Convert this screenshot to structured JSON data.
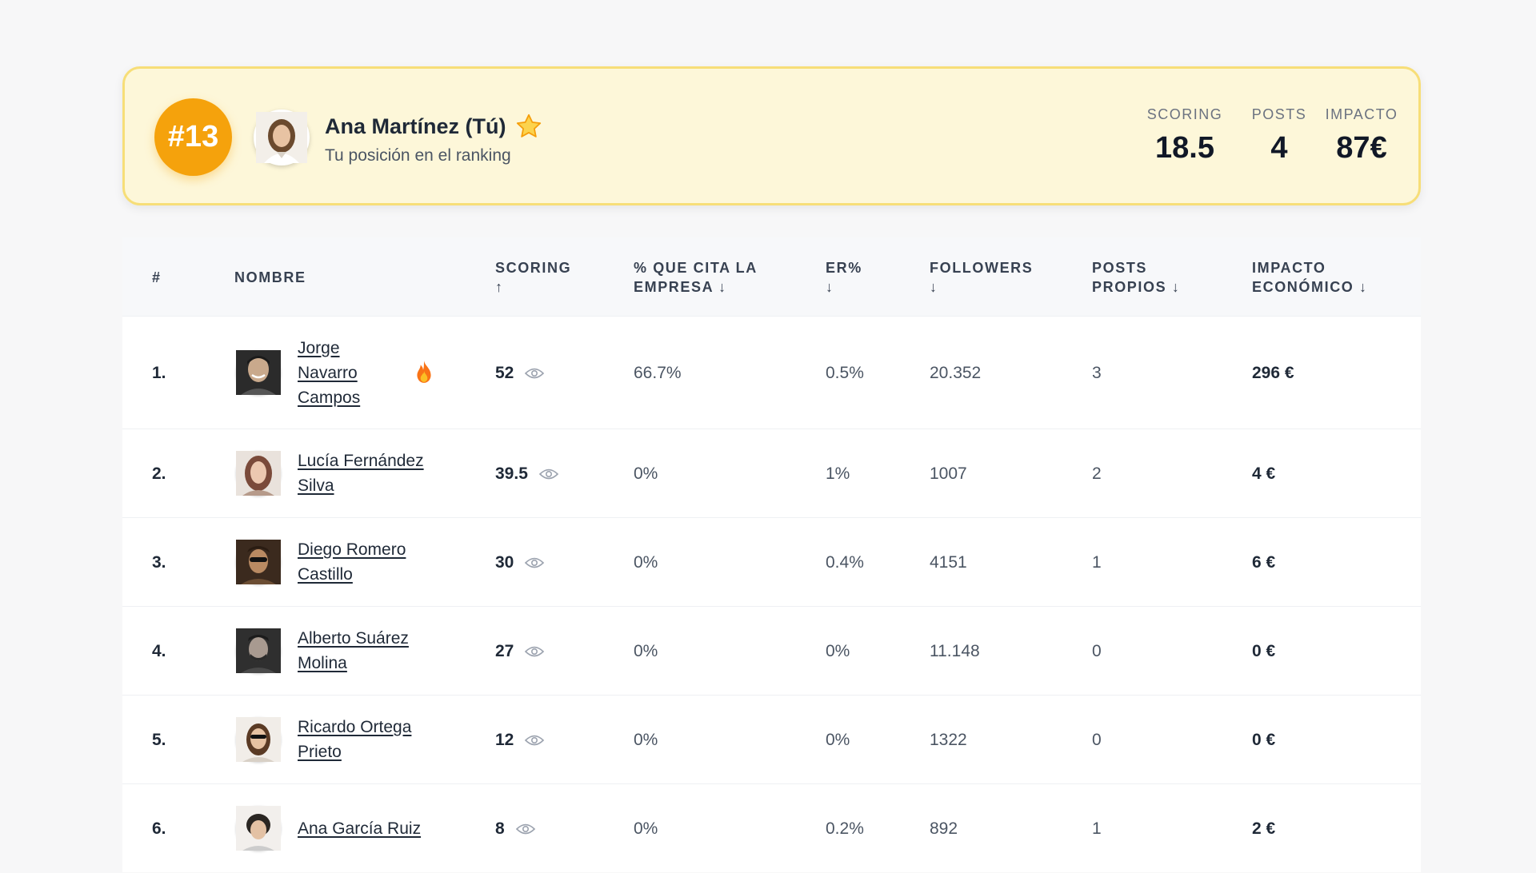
{
  "me": {
    "rank": "#13",
    "name": "Ana Martínez (Tú)",
    "subtitle": "Tu posición en el ranking",
    "stats": [
      {
        "label": "SCORING",
        "value": "18.5"
      },
      {
        "label": "POSTS",
        "value": "4"
      },
      {
        "label": "IMPACTO",
        "value": "87€"
      }
    ]
  },
  "table": {
    "headers": {
      "rank": "#",
      "name": "NOMBRE",
      "scoring": [
        "SCORING",
        "↑"
      ],
      "cita": [
        "% QUE CITA LA",
        "EMPRESA ↓"
      ],
      "er": [
        "ER%",
        "↓"
      ],
      "followers": [
        "FOLLOWERS",
        "↓"
      ],
      "posts": [
        "POSTS",
        "PROPIOS ↓"
      ],
      "impacto": [
        "IMPACTO",
        "ECONÓMICO ↓"
      ]
    },
    "rows": [
      {
        "rank": "1.",
        "name_lines": [
          "Jorge",
          "Navarro",
          "Campos"
        ],
        "hot": true,
        "scoring": "52",
        "cita": "66.7%",
        "er": "0.5%",
        "followers": "20.352",
        "posts": "3",
        "impacto": "296 €"
      },
      {
        "rank": "2.",
        "name_lines": [
          "Lucía Fernández",
          "Silva"
        ],
        "hot": false,
        "scoring": "39.5",
        "cita": "0%",
        "er": "1%",
        "followers": "1007",
        "posts": "2",
        "impacto": "4 €"
      },
      {
        "rank": "3.",
        "name_lines": [
          "Diego Romero",
          "Castillo"
        ],
        "hot": false,
        "scoring": "30",
        "cita": "0%",
        "er": "0.4%",
        "followers": "4151",
        "posts": "1",
        "impacto": "6 €"
      },
      {
        "rank": "4.",
        "name_lines": [
          "Alberto Suárez",
          "Molina"
        ],
        "hot": false,
        "scoring": "27",
        "cita": "0%",
        "er": "0%",
        "followers": "11.148",
        "posts": "0",
        "impacto": "0 €"
      },
      {
        "rank": "5.",
        "name_lines": [
          "Ricardo Ortega",
          "Prieto"
        ],
        "hot": false,
        "scoring": "12",
        "cita": "0%",
        "er": "0%",
        "followers": "1322",
        "posts": "0",
        "impacto": "0 €"
      },
      {
        "rank": "6.",
        "name_lines": [
          "Ana García Ruiz"
        ],
        "hot": false,
        "scoring": "8",
        "cita": "0%",
        "er": "0.2%",
        "followers": "892",
        "posts": "1",
        "impacto": "2 €"
      }
    ]
  },
  "colors": {
    "accent": "#f5a20c",
    "card_bg": "#fdf7d9",
    "card_border": "#f7de78"
  },
  "icons": {
    "favorite": "star-icon",
    "trending": "fire-icon",
    "view": "eye-icon"
  }
}
